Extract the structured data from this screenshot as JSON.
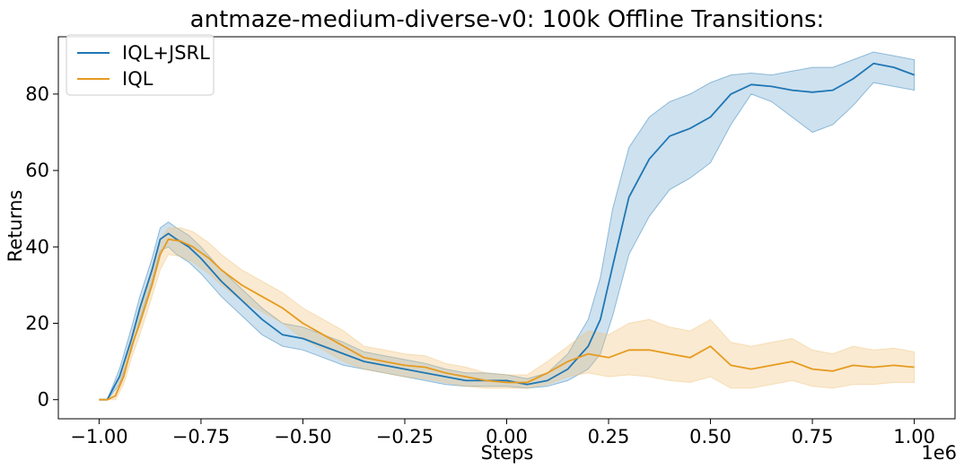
{
  "chart_data": {
    "type": "line",
    "title": "antmaze-medium-diverse-v0: 100k Offline Transitions:",
    "xlabel": "Steps",
    "ylabel": "Returns",
    "x_offset_label": "1e6",
    "xlim": [
      -1.1,
      1.1
    ],
    "ylim": [
      -5,
      95
    ],
    "x_ticks": [
      -1.0,
      -0.75,
      -0.5,
      -0.25,
      0.0,
      0.25,
      0.5,
      0.75,
      1.0
    ],
    "x_tick_labels": [
      "−1.00",
      "−0.75",
      "−0.50",
      "−0.25",
      "0.00",
      "0.25",
      "0.50",
      "0.75",
      "1.00"
    ],
    "y_ticks": [
      0,
      20,
      40,
      60,
      80
    ],
    "y_tick_labels": [
      "0",
      "20",
      "40",
      "60",
      "80"
    ],
    "grid": false,
    "legend_position": "top-left",
    "series": [
      {
        "name": "IQL+JSRL",
        "color": "#1f77b4",
        "fill_color": "#1f77b4",
        "points": [
          [
            -1.0,
            0
          ],
          [
            -0.98,
            0
          ],
          [
            -0.95,
            6
          ],
          [
            -0.92,
            16
          ],
          [
            -0.9,
            24
          ],
          [
            -0.87,
            34
          ],
          [
            -0.85,
            42
          ],
          [
            -0.83,
            43.5
          ],
          [
            -0.81,
            42
          ],
          [
            -0.78,
            40
          ],
          [
            -0.75,
            37
          ],
          [
            -0.7,
            31
          ],
          [
            -0.65,
            26
          ],
          [
            -0.6,
            21
          ],
          [
            -0.55,
            17
          ],
          [
            -0.5,
            16
          ],
          [
            -0.45,
            14
          ],
          [
            -0.4,
            12
          ],
          [
            -0.35,
            10
          ],
          [
            -0.3,
            9
          ],
          [
            -0.25,
            8
          ],
          [
            -0.2,
            7
          ],
          [
            -0.15,
            6
          ],
          [
            -0.1,
            5
          ],
          [
            -0.05,
            5
          ],
          [
            0.0,
            5
          ],
          [
            0.05,
            4
          ],
          [
            0.1,
            5
          ],
          [
            0.15,
            8
          ],
          [
            0.2,
            14
          ],
          [
            0.23,
            21
          ],
          [
            0.26,
            35
          ],
          [
            0.3,
            53
          ],
          [
            0.35,
            63
          ],
          [
            0.4,
            69
          ],
          [
            0.45,
            71
          ],
          [
            0.5,
            74
          ],
          [
            0.55,
            80
          ],
          [
            0.6,
            82.5
          ],
          [
            0.65,
            82
          ],
          [
            0.7,
            81
          ],
          [
            0.75,
            80.5
          ],
          [
            0.8,
            81
          ],
          [
            0.85,
            84
          ],
          [
            0.9,
            88
          ],
          [
            0.95,
            87
          ],
          [
            1.0,
            85
          ]
        ],
        "lower": [
          [
            -1.0,
            0
          ],
          [
            -0.98,
            0
          ],
          [
            -0.95,
            4
          ],
          [
            -0.92,
            13
          ],
          [
            -0.9,
            21
          ],
          [
            -0.87,
            31
          ],
          [
            -0.85,
            39
          ],
          [
            -0.83,
            40
          ],
          [
            -0.81,
            38
          ],
          [
            -0.78,
            36
          ],
          [
            -0.75,
            33
          ],
          [
            -0.7,
            27
          ],
          [
            -0.65,
            22
          ],
          [
            -0.6,
            17
          ],
          [
            -0.55,
            14
          ],
          [
            -0.5,
            13
          ],
          [
            -0.45,
            11
          ],
          [
            -0.4,
            9
          ],
          [
            -0.35,
            8
          ],
          [
            -0.3,
            7
          ],
          [
            -0.25,
            6
          ],
          [
            -0.2,
            5
          ],
          [
            -0.15,
            4
          ],
          [
            -0.1,
            3.5
          ],
          [
            -0.05,
            3.5
          ],
          [
            0.0,
            3.5
          ],
          [
            0.05,
            3
          ],
          [
            0.1,
            3.5
          ],
          [
            0.15,
            5
          ],
          [
            0.2,
            8
          ],
          [
            0.23,
            12
          ],
          [
            0.26,
            22
          ],
          [
            0.3,
            38
          ],
          [
            0.35,
            48
          ],
          [
            0.4,
            55
          ],
          [
            0.45,
            58
          ],
          [
            0.5,
            62
          ],
          [
            0.55,
            72
          ],
          [
            0.6,
            80
          ],
          [
            0.65,
            78
          ],
          [
            0.7,
            74
          ],
          [
            0.75,
            70
          ],
          [
            0.8,
            72
          ],
          [
            0.85,
            77
          ],
          [
            0.9,
            83
          ],
          [
            0.95,
            82
          ],
          [
            1.0,
            81
          ]
        ],
        "upper": [
          [
            -1.0,
            0
          ],
          [
            -0.98,
            0
          ],
          [
            -0.95,
            8
          ],
          [
            -0.92,
            19
          ],
          [
            -0.9,
            27
          ],
          [
            -0.87,
            37
          ],
          [
            -0.85,
            45
          ],
          [
            -0.83,
            46.5
          ],
          [
            -0.81,
            45
          ],
          [
            -0.78,
            43
          ],
          [
            -0.75,
            40
          ],
          [
            -0.7,
            34
          ],
          [
            -0.65,
            29
          ],
          [
            -0.6,
            24
          ],
          [
            -0.55,
            20
          ],
          [
            -0.5,
            19
          ],
          [
            -0.45,
            17
          ],
          [
            -0.4,
            15
          ],
          [
            -0.35,
            12.5
          ],
          [
            -0.3,
            11.5
          ],
          [
            -0.25,
            10.5
          ],
          [
            -0.2,
            9.5
          ],
          [
            -0.15,
            8
          ],
          [
            -0.1,
            7
          ],
          [
            -0.05,
            7
          ],
          [
            0.0,
            6.5
          ],
          [
            0.05,
            5.5
          ],
          [
            0.1,
            7
          ],
          [
            0.15,
            12
          ],
          [
            0.2,
            21
          ],
          [
            0.23,
            32
          ],
          [
            0.26,
            50
          ],
          [
            0.3,
            66
          ],
          [
            0.35,
            74
          ],
          [
            0.4,
            78
          ],
          [
            0.45,
            80
          ],
          [
            0.5,
            83
          ],
          [
            0.55,
            85
          ],
          [
            0.6,
            85.5
          ],
          [
            0.65,
            85
          ],
          [
            0.7,
            86
          ],
          [
            0.75,
            87
          ],
          [
            0.8,
            87
          ],
          [
            0.85,
            89
          ],
          [
            0.9,
            91
          ],
          [
            0.95,
            90
          ],
          [
            1.0,
            89
          ]
        ]
      },
      {
        "name": "IQL",
        "color": "#e69b1f",
        "fill_color": "#f0c47a",
        "points": [
          [
            -1.0,
            0
          ],
          [
            -0.98,
            0
          ],
          [
            -0.96,
            1
          ],
          [
            -0.94,
            6
          ],
          [
            -0.92,
            14
          ],
          [
            -0.9,
            20
          ],
          [
            -0.87,
            30
          ],
          [
            -0.85,
            38
          ],
          [
            -0.83,
            42
          ],
          [
            -0.8,
            41.5
          ],
          [
            -0.77,
            40
          ],
          [
            -0.73,
            37
          ],
          [
            -0.7,
            34
          ],
          [
            -0.65,
            30
          ],
          [
            -0.6,
            27
          ],
          [
            -0.55,
            24
          ],
          [
            -0.5,
            20
          ],
          [
            -0.45,
            17
          ],
          [
            -0.4,
            14
          ],
          [
            -0.35,
            11
          ],
          [
            -0.3,
            10
          ],
          [
            -0.25,
            9
          ],
          [
            -0.2,
            8.5
          ],
          [
            -0.15,
            7
          ],
          [
            -0.1,
            6
          ],
          [
            -0.05,
            5
          ],
          [
            0.0,
            4.5
          ],
          [
            0.05,
            4.5
          ],
          [
            0.1,
            7
          ],
          [
            0.15,
            10
          ],
          [
            0.2,
            12
          ],
          [
            0.25,
            11
          ],
          [
            0.3,
            13
          ],
          [
            0.35,
            13
          ],
          [
            0.4,
            12
          ],
          [
            0.45,
            11
          ],
          [
            0.5,
            14
          ],
          [
            0.55,
            9
          ],
          [
            0.6,
            8
          ],
          [
            0.65,
            9
          ],
          [
            0.7,
            10
          ],
          [
            0.75,
            8
          ],
          [
            0.8,
            7.5
          ],
          [
            0.85,
            9
          ],
          [
            0.9,
            8.5
          ],
          [
            0.95,
            9
          ],
          [
            1.0,
            8.5
          ]
        ],
        "lower": [
          [
            -1.0,
            0
          ],
          [
            -0.98,
            0
          ],
          [
            -0.96,
            0
          ],
          [
            -0.94,
            4
          ],
          [
            -0.92,
            11
          ],
          [
            -0.9,
            17
          ],
          [
            -0.87,
            27
          ],
          [
            -0.85,
            34
          ],
          [
            -0.83,
            38
          ],
          [
            -0.8,
            37.5
          ],
          [
            -0.77,
            36
          ],
          [
            -0.73,
            33
          ],
          [
            -0.7,
            30
          ],
          [
            -0.65,
            26
          ],
          [
            -0.6,
            23
          ],
          [
            -0.55,
            20
          ],
          [
            -0.5,
            16
          ],
          [
            -0.45,
            13
          ],
          [
            -0.4,
            10
          ],
          [
            -0.35,
            8
          ],
          [
            -0.3,
            7
          ],
          [
            -0.25,
            6
          ],
          [
            -0.2,
            5.5
          ],
          [
            -0.15,
            4.5
          ],
          [
            -0.1,
            3.5
          ],
          [
            -0.05,
            3
          ],
          [
            0.0,
            3
          ],
          [
            0.05,
            3
          ],
          [
            0.1,
            4
          ],
          [
            0.15,
            6
          ],
          [
            0.2,
            7
          ],
          [
            0.25,
            6
          ],
          [
            0.3,
            6.5
          ],
          [
            0.35,
            6
          ],
          [
            0.4,
            5
          ],
          [
            0.45,
            4.5
          ],
          [
            0.5,
            6
          ],
          [
            0.55,
            3
          ],
          [
            0.6,
            3
          ],
          [
            0.65,
            4
          ],
          [
            0.7,
            5
          ],
          [
            0.75,
            3.5
          ],
          [
            0.8,
            3
          ],
          [
            0.85,
            4
          ],
          [
            0.9,
            4
          ],
          [
            0.95,
            4.5
          ],
          [
            1.0,
            4.5
          ]
        ],
        "upper": [
          [
            -1.0,
            0
          ],
          [
            -0.98,
            0
          ],
          [
            -0.96,
            2
          ],
          [
            -0.94,
            8
          ],
          [
            -0.92,
            17
          ],
          [
            -0.9,
            23
          ],
          [
            -0.87,
            33
          ],
          [
            -0.85,
            42
          ],
          [
            -0.83,
            45
          ],
          [
            -0.8,
            45
          ],
          [
            -0.77,
            44
          ],
          [
            -0.73,
            41
          ],
          [
            -0.7,
            38
          ],
          [
            -0.65,
            34
          ],
          [
            -0.6,
            31
          ],
          [
            -0.55,
            28
          ],
          [
            -0.5,
            24
          ],
          [
            -0.45,
            21
          ],
          [
            -0.4,
            18
          ],
          [
            -0.35,
            14
          ],
          [
            -0.3,
            13
          ],
          [
            -0.25,
            12
          ],
          [
            -0.2,
            11.5
          ],
          [
            -0.15,
            9.5
          ],
          [
            -0.1,
            8.5
          ],
          [
            -0.05,
            7
          ],
          [
            0.0,
            6.5
          ],
          [
            0.05,
            6.5
          ],
          [
            0.1,
            10
          ],
          [
            0.15,
            14
          ],
          [
            0.2,
            18
          ],
          [
            0.25,
            17
          ],
          [
            0.3,
            20
          ],
          [
            0.35,
            21
          ],
          [
            0.4,
            19
          ],
          [
            0.45,
            18
          ],
          [
            0.5,
            21
          ],
          [
            0.55,
            15
          ],
          [
            0.6,
            14
          ],
          [
            0.65,
            15
          ],
          [
            0.7,
            16
          ],
          [
            0.75,
            13
          ],
          [
            0.8,
            12
          ],
          [
            0.85,
            14
          ],
          [
            0.9,
            13
          ],
          [
            0.95,
            13.5
          ],
          [
            1.0,
            12.5
          ]
        ]
      }
    ]
  }
}
